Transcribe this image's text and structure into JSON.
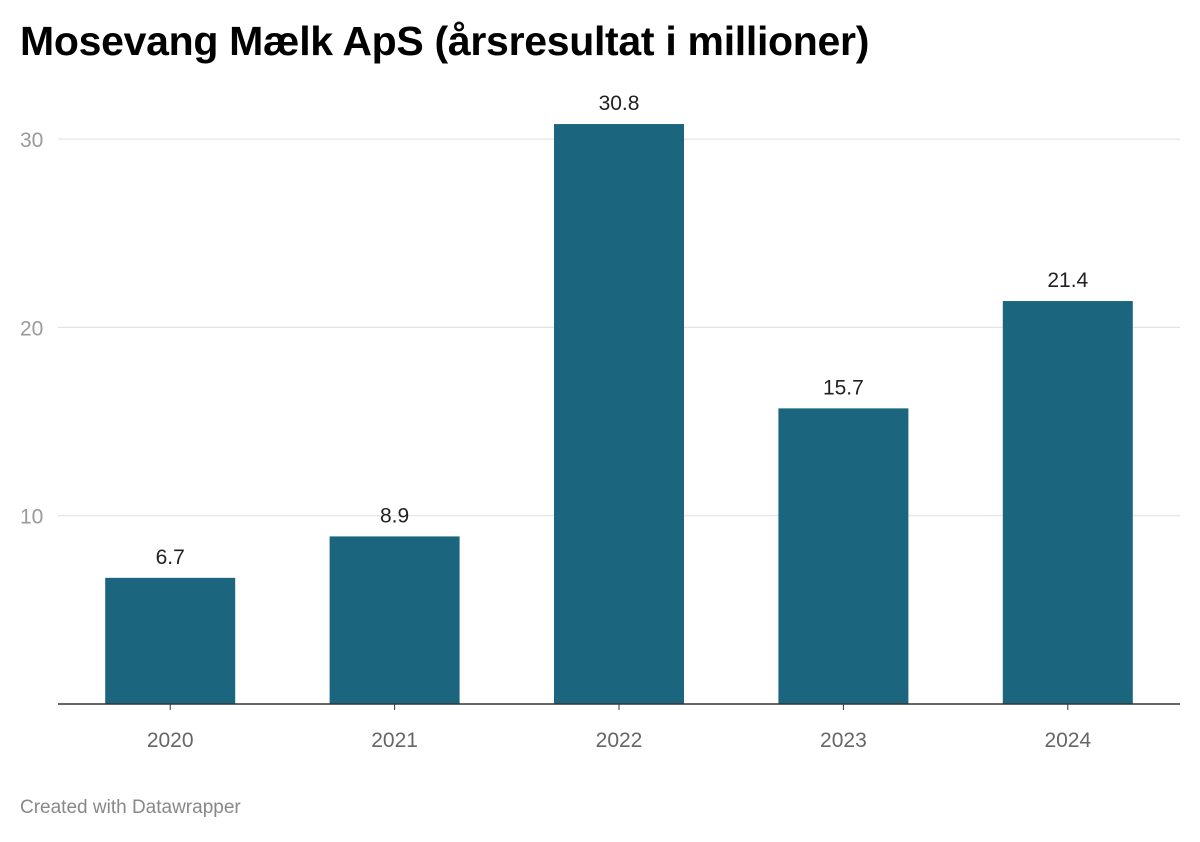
{
  "title": "Mosevang Mælk ApS (årsresultat i millioner)",
  "footer": "Created with Datawrapper",
  "colors": {
    "bar": "#1b667e",
    "grid": "#e3e3e3",
    "axis_line": "#333333",
    "tick_label": "#9a9a9a",
    "x_label": "#666666",
    "value_label": "#222222"
  },
  "chart_data": {
    "type": "bar",
    "categories": [
      "2020",
      "2021",
      "2022",
      "2023",
      "2024"
    ],
    "values": [
      6.7,
      8.9,
      30.8,
      15.7,
      21.4
    ],
    "value_labels": [
      "6.7",
      "8.9",
      "30.8",
      "15.7",
      "21.4"
    ],
    "title": "Mosevang Mælk ApS (årsresultat i millioner)",
    "xlabel": "",
    "ylabel": "",
    "ylim": [
      0,
      30
    ],
    "yticks": [
      10,
      20,
      30
    ],
    "ytick_labels": [
      "10",
      "20",
      "30"
    ],
    "grid": true,
    "legend": "none"
  }
}
